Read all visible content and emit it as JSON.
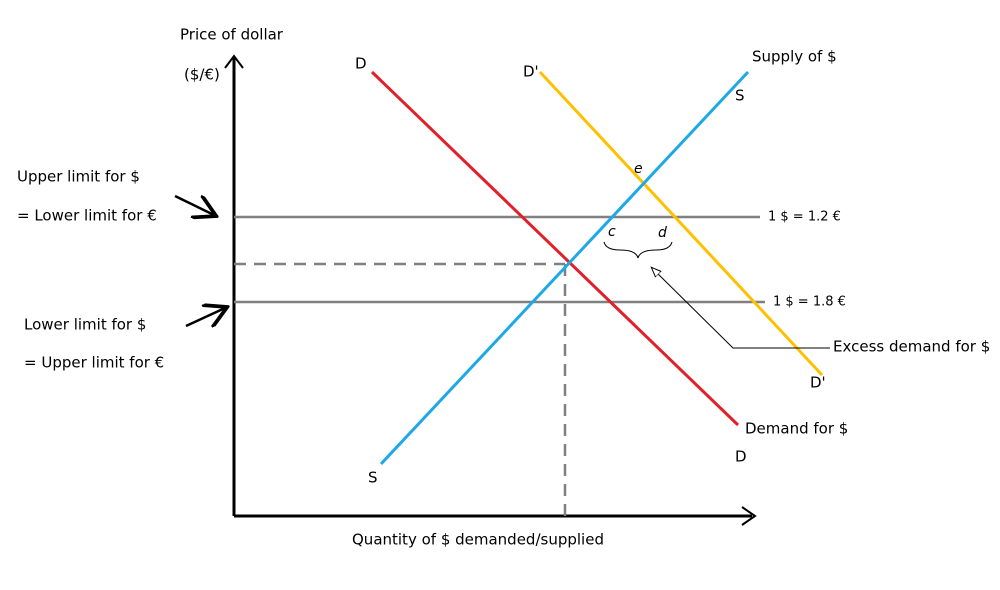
{
  "axes": {
    "y_label": "Price of dollar",
    "y_unit": "($/€)",
    "x_label": "Quantity of $ demanded/supplied"
  },
  "curves": {
    "demand": {
      "top_label": "D",
      "bottom_label": "D",
      "name": "Demand for $"
    },
    "new_demand": {
      "top_label": "D'",
      "bottom_label": "D'"
    },
    "supply": {
      "top_label": "S",
      "bottom_label": "S",
      "name": "Supply of $"
    }
  },
  "rates": {
    "upper": "1 $ = 1.2 €",
    "lower": "1 $ = 1.8 €"
  },
  "points": {
    "e": "e",
    "c": "c",
    "d": "d"
  },
  "annotations": {
    "upper_limit": [
      "Upper limit for $",
      "= Lower limit for €"
    ],
    "lower_limit": [
      "Lower limit for $",
      "= Upper limit for €"
    ],
    "excess": "Excess demand for $"
  }
}
